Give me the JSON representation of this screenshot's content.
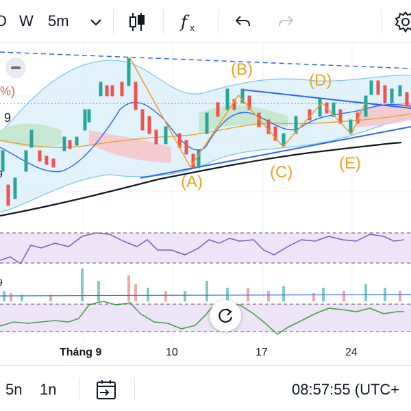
{
  "toolbar": {
    "symbol_partial": "D",
    "interval_w": "W",
    "interval_5m": "5m",
    "dropdown_icon": "chevron-down-icon",
    "candles_icon": "candlestick-icon",
    "indicators_icon": "fx-icon",
    "undo_icon": "undo-icon",
    "redo_icon": "redo-icon",
    "settings_icon": "gear-icon"
  },
  "chart": {
    "wave_labels": [
      "(A)",
      "(B)",
      "(C)",
      "(D)",
      "(E)"
    ],
    "left_edge_labels": {
      "pct": "%)",
      "nine_a": "9",
      "nine_b": "9",
      "nine_c": "9"
    },
    "x_axis": [
      "Tháng 9",
      "10",
      "17",
      "24"
    ],
    "colors": {
      "up": "#26a69a",
      "down": "#ef5350",
      "wave": "#f0a020",
      "trend": "#2962ff"
    }
  },
  "footer": {
    "range_5n": "5n",
    "range_1n": "1n",
    "goto_date_icon": "calendar-arrow-icon",
    "time": "08:57:55 (UTC+"
  }
}
